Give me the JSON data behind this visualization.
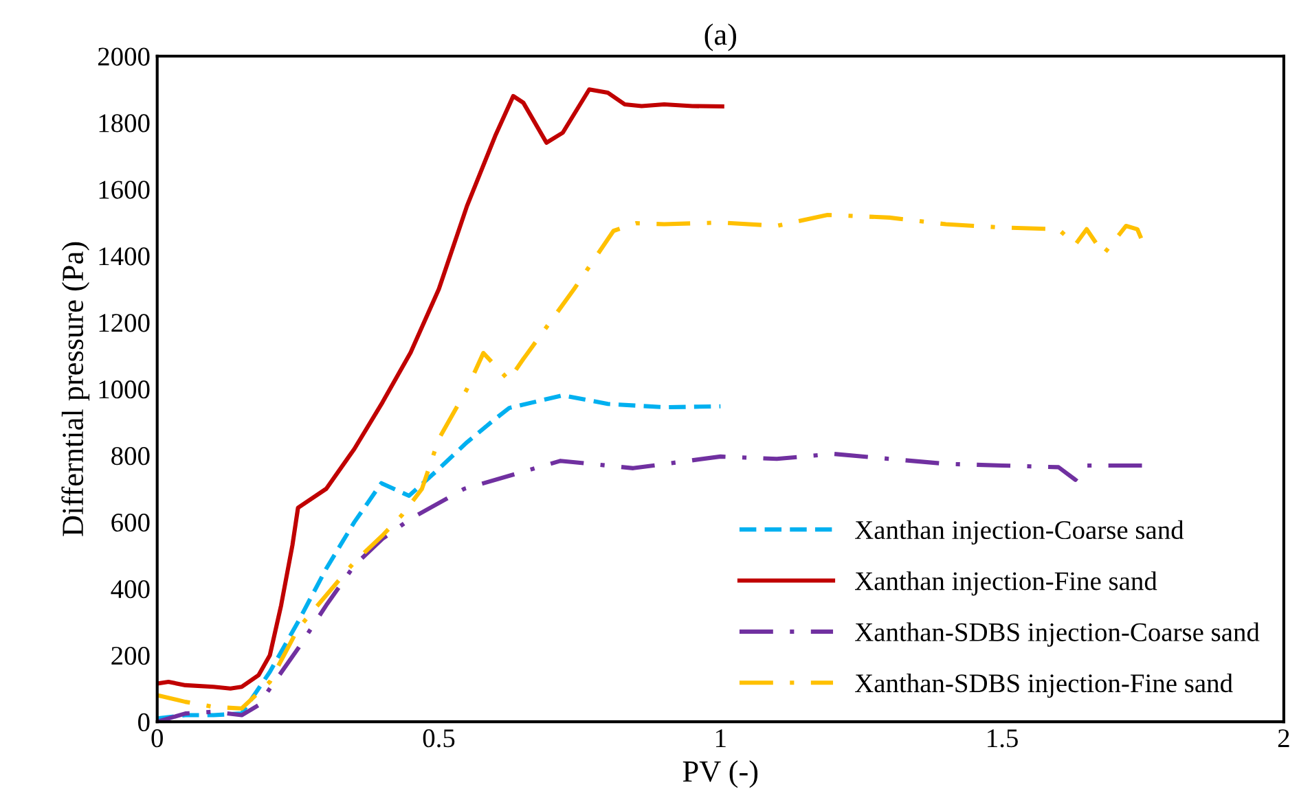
{
  "chart_data": {
    "type": "line",
    "title": "(a)",
    "xlabel": "PV (-)",
    "ylabel": "Differntial pressure (Pa)",
    "xlim": [
      0,
      2
    ],
    "xticks": [
      0,
      0.5,
      1,
      1.5,
      2
    ],
    "ylim": [
      0,
      2000
    ],
    "yticks": [
      0,
      200,
      400,
      600,
      800,
      1000,
      1200,
      1400,
      1600,
      1800,
      2000
    ],
    "grid": false,
    "legend": "right",
    "marker": "none",
    "series": [
      {
        "name": "Xanthan injection-Coarse sand",
        "color": "#00b0f0",
        "line_style": "dashed",
        "x": [
          0,
          0.05,
          0.1,
          0.15,
          0.2,
          0.25,
          0.3,
          0.35,
          0.398,
          0.447,
          0.5,
          0.55,
          0.6,
          0.625,
          0.72,
          0.8,
          0.9,
          1.0
        ],
        "values": [
          10,
          20,
          20,
          25,
          150,
          300,
          460,
          600,
          717,
          679,
          760,
          840,
          910,
          943,
          981,
          955,
          945,
          948
        ]
      },
      {
        "name": "Xanthan injection-Fine sand",
        "color": "#c00000",
        "line_style": "solid",
        "x": [
          0,
          0.02,
          0.05,
          0.1,
          0.13,
          0.15,
          0.18,
          0.2,
          0.22,
          0.24,
          0.25,
          0.3,
          0.35,
          0.4,
          0.45,
          0.5,
          0.55,
          0.6,
          0.632,
          0.65,
          0.691,
          0.72,
          0.767,
          0.8,
          0.83,
          0.86,
          0.9,
          0.95,
          1.003
        ],
        "values": [
          115,
          120,
          110,
          105,
          100,
          105,
          140,
          200,
          350,
          530,
          643,
          700,
          820,
          960,
          1110,
          1300,
          1550,
          1760,
          1880,
          1860,
          1740,
          1770,
          1900,
          1890,
          1855,
          1850,
          1855,
          1850,
          1849
        ]
      },
      {
        "name": "Xanthan-SDBS injection-Coarse sand",
        "color": "#7030a0",
        "line_style": "dashdot",
        "x": [
          0,
          0.05,
          0.1,
          0.15,
          0.18,
          0.2,
          0.25,
          0.3,
          0.35,
          0.4,
          0.45,
          0.545,
          0.716,
          0.845,
          1.0,
          1.1,
          1.2,
          1.3,
          1.4,
          1.5,
          1.6,
          1.63,
          1.65,
          1.75
        ],
        "values": [
          0,
          25,
          30,
          20,
          50,
          100,
          220,
          350,
          470,
          550,
          610,
          700,
          784,
          762,
          797,
          790,
          805,
          790,
          775,
          770,
          765,
          727,
          770,
          770
        ]
      },
      {
        "name": "Xanthan-SDBS injection-Fine sand",
        "color": "#ffc000",
        "line_style": "dashdot",
        "x": [
          0,
          0.05,
          0.1,
          0.15,
          0.2,
          0.25,
          0.3,
          0.35,
          0.4,
          0.435,
          0.47,
          0.5,
          0.55,
          0.579,
          0.624,
          0.65,
          0.74,
          0.81,
          0.85,
          0.9,
          1.0,
          1.1,
          1.19,
          1.3,
          1.4,
          1.5,
          1.6,
          1.63,
          1.65,
          1.68,
          1.72,
          1.74,
          1.75
        ],
        "values": [
          80,
          60,
          45,
          40,
          120,
          280,
          380,
          480,
          560,
          622,
          700,
          850,
          1000,
          1108,
          1027,
          1090,
          1300,
          1475,
          1498,
          1495,
          1500,
          1490,
          1523,
          1515,
          1495,
          1485,
          1480,
          1434,
          1480,
          1405,
          1490,
          1480,
          1440
        ]
      }
    ]
  }
}
